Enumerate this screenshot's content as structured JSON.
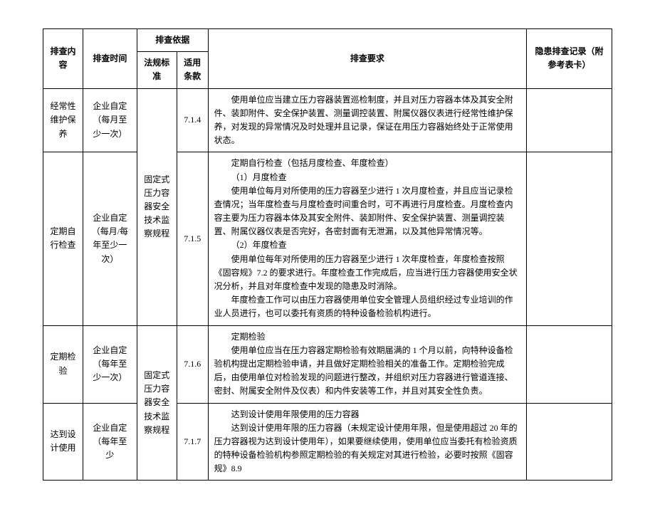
{
  "headers": {
    "content": "排查内容",
    "time": "排查时间",
    "basis_group": "排查依据",
    "basis_standard": "法规标准",
    "basis_clause": "适用条款",
    "requirement": "排查要求",
    "record": "隐患排查记录（附参考表卡）"
  },
  "basis_text_1": "固定式压力容器安全技术监察规程",
  "basis_text_2": "固定式压力容器安全技术监察规程",
  "rows": [
    {
      "content": "经常性维护保养",
      "time": "企业自定（每月至少一次）",
      "clause": "7.1.4",
      "requirement": "使用单位应当建立压力容器装置巡检制度，并且对压力容器本体及其安全附件、装卸附件、安全保护装置、测量调控装置、附属仪器仪表进行经常性维护保养，对发现的异常情况及时处理并且记录，保证在用压力容器始终处于正常使用状态。",
      "record": ""
    },
    {
      "content": "定期自行检查",
      "time": "企业自定（每月/每年至少一次）",
      "clause": "7.1.5",
      "requirement_lines": [
        "定期自行检查（包括月度检查、年度检查）",
        "（1）月度检查",
        "使用单位每月对所使用的压力容器至少进行 1 次月度检查，并且应当记录检查情况；当年度检查与月度检查时间重合时，可不再进行月度检查。月度检查内容主要为压力容器本体及其安全附件、装卸附件、安全保护装置、测量调控装置、附属仪器仪表是否完好，各密封面有无泄漏，以及其他异常情况等。",
        "（2）年度检查",
        "使用单位每年对所使用的压力容器至少进行 1 次年度检查，年度检查按照《固容规》7.2 的要求进行。年度检查工作完成后，应当进行压力容器使用安全状况分析，并且对年度检查中发现的隐患及时消除。",
        "年度检查工作可以由压力容器使用单位安全管理人员组织经过专业培训的作业人员进行，也可以委托有资质的特种设备检验机构进行。"
      ],
      "record": ""
    },
    {
      "content": "定期检验",
      "time": "企业自定（每年至少一次）",
      "clause": "7.1.6",
      "requirement_lines": [
        "定期检验",
        "使用单位应当在压力容器定期检验有效期届满的 1 个月以前，向特种设备检验机构提出定期检验申请，并且做好定期检验相关的准备工作。定期检验完成后，由使用单位对检验发现的问题进行整改，并组织对压力容器进行管道连接、密封、附属安全附件及仪表）和内件安装等工作，并且对其安全性负责。"
      ],
      "record": ""
    },
    {
      "content": "达到设计使用",
      "time": "企业自定（每年至少",
      "clause": "7.1.7",
      "requirement_lines": [
        "达到设计使用年限使用的压力容器",
        "达到设计使用年限的压力容器（未规定设计使用年限，但是使用超过 20 年的压力容器视为达到设计使用年），如果要继续使用，使用单位应当委托有检验资质的特种设备检验机构参照定期检验的有关规定对其进行检验，必要时按照《固容规》8.9"
      ],
      "record": ""
    }
  ]
}
